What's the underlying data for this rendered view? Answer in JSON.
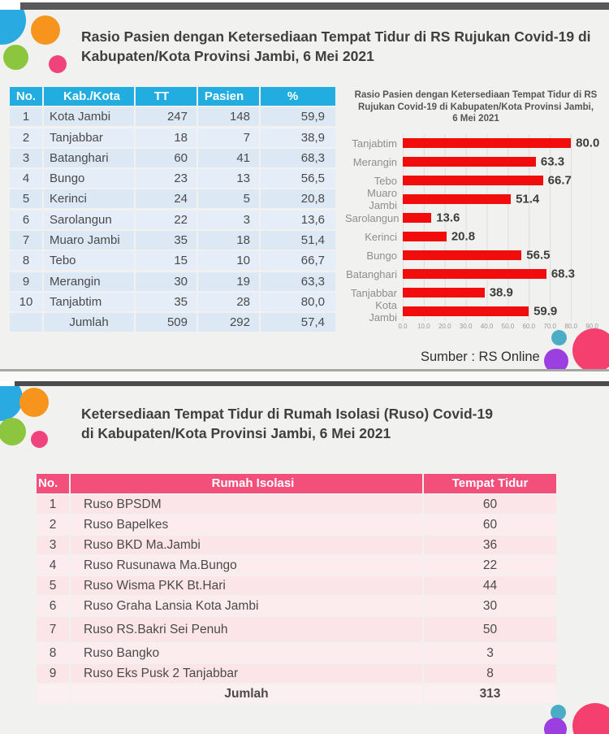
{
  "section1": {
    "title_line1": "Rasio Pasien dengan Ketersediaan Tempat Tidur di RS Rujukan Covid-19 di",
    "title_line2": "Kabupaten/Kota Provinsi Jambi, 6 Mei 2021",
    "table": {
      "headers": [
        "No.",
        "Kab./Kota",
        "TT",
        "Pasien",
        "%"
      ],
      "rows": [
        [
          "1",
          "Kota Jambi",
          "247",
          "148",
          "59,9"
        ],
        [
          "2",
          "Tanjabbar",
          "18",
          "7",
          "38,9"
        ],
        [
          "3",
          "Batanghari",
          "60",
          "41",
          "68,3"
        ],
        [
          "4",
          "Bungo",
          "23",
          "13",
          "56,5"
        ],
        [
          "5",
          "Kerinci",
          "24",
          "5",
          "20,8"
        ],
        [
          "6",
          "Sarolangun",
          "22",
          "3",
          "13,6"
        ],
        [
          "7",
          "Muaro Jambi",
          "35",
          "18",
          "51,4"
        ],
        [
          "8",
          "Tebo",
          "15",
          "10",
          "66,7"
        ],
        [
          "9",
          "Merangin",
          "30",
          "19",
          "63,3"
        ],
        [
          "10",
          "Tanjabtim",
          "35",
          "28",
          "80,0"
        ]
      ],
      "total_row": [
        "",
        "Jumlah",
        "509",
        "292",
        "57,4"
      ]
    },
    "source_label": "Sumber : RS Online"
  },
  "chart_data": {
    "type": "bar",
    "orientation": "horizontal",
    "title_line1": "Rasio Pasien dengan Ketersediaan Tempat Tidur di RS",
    "title_line2": "Rujukan Covid-19 di Kabupaten/Kota Provinsi Jambi,",
    "title_line3": "6 Mei 2021",
    "categories": [
      "Tanjabtim",
      "Merangin",
      "Tebo",
      "Muaro Jambi",
      "Sarolangun",
      "Kerinci",
      "Bungo",
      "Batanghari",
      "Tanjabbar",
      "Kota Jambi"
    ],
    "values": [
      80.0,
      63.3,
      66.7,
      51.4,
      13.6,
      20.8,
      56.5,
      68.3,
      38.9,
      59.9
    ],
    "value_labels": [
      "80.0",
      "63.3",
      "66.7",
      "51.4",
      "13.6",
      "20.8",
      "56.5",
      "68.3",
      "38.9",
      "59.9"
    ],
    "xlim": [
      0,
      90
    ],
    "x_ticks": [
      "0.0",
      "10.0",
      "20.0",
      "30.0",
      "40.0",
      "50.0",
      "60.0",
      "70.0",
      "80.0",
      "90.0"
    ],
    "grid": true,
    "legend": false,
    "bar_color": "#F20D0D"
  },
  "section2": {
    "title_line1": "Ketersediaan Tempat Tidur di Rumah Isolasi (Ruso) Covid-19",
    "title_line2": "di Kabupaten/Kota Provinsi Jambi, 6 Mei 2021",
    "table": {
      "headers": [
        "No.",
        "Rumah Isolasi",
        "Tempat Tidur"
      ],
      "rows": [
        [
          "1",
          "Ruso BPSDM",
          "60"
        ],
        [
          "2",
          "Ruso Bapelkes",
          "60"
        ],
        [
          "3",
          "Ruso BKD Ma.Jambi",
          "36"
        ],
        [
          "4",
          "Ruso Rusunawa Ma.Bungo",
          "22"
        ],
        [
          "5",
          "Ruso Wisma PKK Bt.Hari",
          "44"
        ],
        [
          "6",
          "Ruso Graha Lansia Kota Jambi",
          "30"
        ],
        [
          "7",
          "Ruso RS.Bakri Sei Penuh",
          "50"
        ],
        [
          "8",
          "Ruso Bangko",
          "3"
        ],
        [
          "9",
          "Ruso Eks Pusk 2 Tanjabbar",
          "8"
        ]
      ],
      "total_row": [
        "",
        "Jumlah",
        "313"
      ]
    }
  },
  "colors": {
    "table1_header": "#22ADE0",
    "table1_row": "#DCE8F4",
    "table2_header": "#F2507B",
    "table2_row": "#FBE5E9",
    "bar_red": "#F20D0D",
    "circle_blue": "#29ABE2",
    "circle_orange": "#F7941E",
    "circle_green": "#8CC63F",
    "circle_pink": "#F0437E",
    "circle_teal": "#4BACC6",
    "circle_purple": "#9C3FE0",
    "circle_big_pink": "#F43F6F",
    "topbar": "#59595B"
  }
}
